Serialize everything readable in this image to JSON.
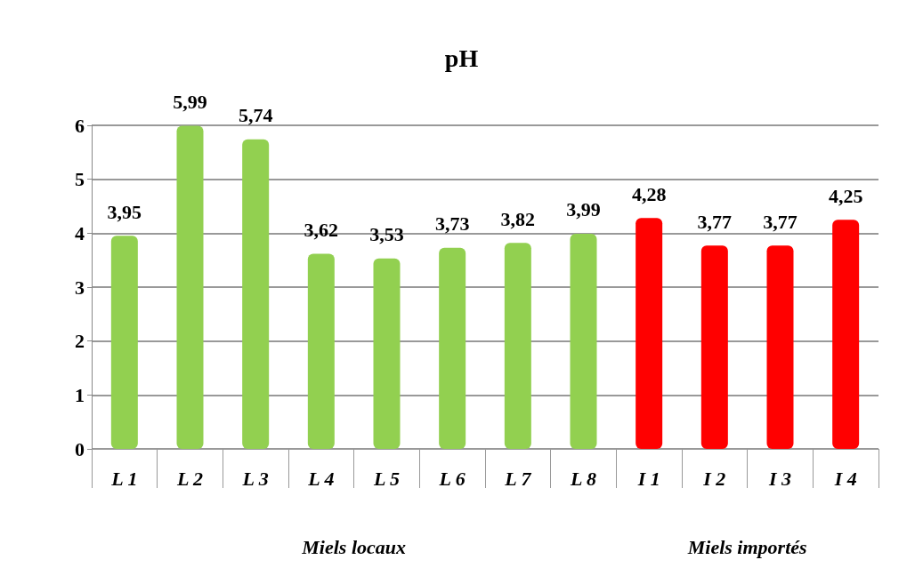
{
  "chart_data": {
    "type": "bar",
    "title": "pH",
    "categories": [
      "L 1",
      "L 2",
      "L 3",
      "L 4",
      "L 5",
      "L 6",
      "L 7",
      "L 8",
      "I 1",
      "I 2",
      "I 3",
      "I 4"
    ],
    "values": [
      3.95,
      5.99,
      5.74,
      3.62,
      3.53,
      3.73,
      3.82,
      3.99,
      4.28,
      3.77,
      3.77,
      4.25
    ],
    "colors": [
      "#92d050",
      "#92d050",
      "#92d050",
      "#92d050",
      "#92d050",
      "#92d050",
      "#92d050",
      "#92d050",
      "#ff0000",
      "#ff0000",
      "#ff0000",
      "#ff0000"
    ],
    "value_labels": [
      "3,95",
      "5,99",
      "5,74",
      "3,62",
      "3,53",
      "3,73",
      "3,82",
      "3,99",
      "4,28",
      "3,77",
      "3,77",
      "4,25"
    ],
    "ylim": [
      0,
      6
    ],
    "yticks": [
      0,
      1,
      2,
      3,
      4,
      5,
      6
    ],
    "grid": "y",
    "annotations": [
      "Miels locaux",
      "Miels importés"
    ]
  }
}
